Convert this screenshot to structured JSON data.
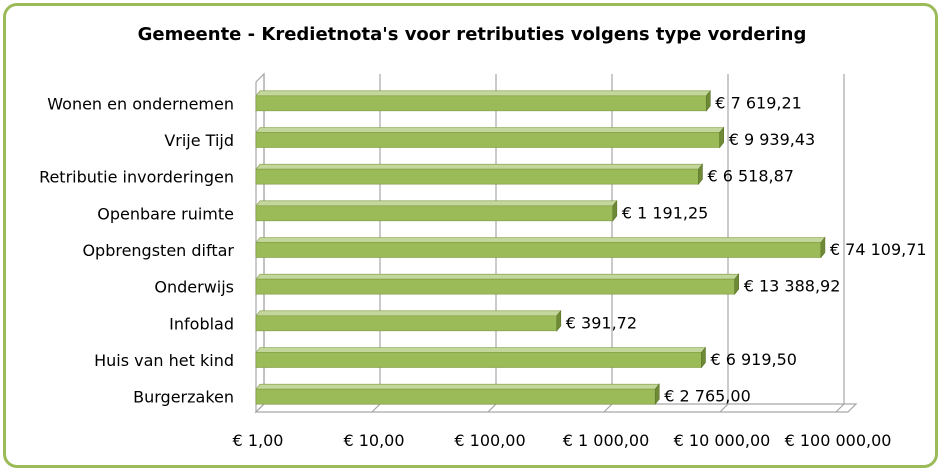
{
  "chart_data": {
    "type": "bar",
    "orientation": "horizontal",
    "title": "Gemeente - Kredietnota's voor retributies volgens type vordering",
    "xscale": "log",
    "xlim": [
      1,
      100000
    ],
    "categories": [
      "Wonen en ondernemen",
      "Vrije Tijd",
      "Retributie invorderingen",
      "Openbare ruimte",
      "Opbrengsten diftar",
      "Onderwijs",
      "Infoblad",
      "Huis van het kind",
      "Burgerzaken"
    ],
    "values": [
      7619.21,
      9939.43,
      6518.87,
      1191.25,
      74109.71,
      13388.92,
      391.72,
      6919.5,
      2765.0
    ],
    "data_labels": [
      "€ 7 619,21",
      "€ 9 939,43",
      "€ 6 518,87",
      "€ 1 191,25",
      "€ 74 109,71",
      "€ 13 388,92",
      "€  391,72",
      "€ 6 919,50",
      "€ 2 765,00"
    ],
    "x_ticks": [
      1,
      10,
      100,
      1000,
      10000,
      100000
    ],
    "x_tick_labels": [
      "€  1,00",
      "€  10,00",
      "€  100,00",
      "€ 1 000,00",
      "€ 10 000,00",
      "€ 100 000,00"
    ],
    "bar_color": "#9bbb59",
    "grid": true,
    "legend": "none"
  }
}
